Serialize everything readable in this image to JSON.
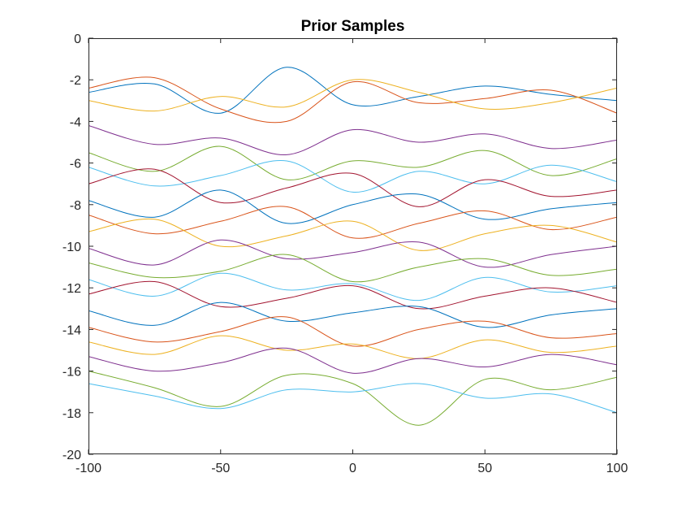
{
  "chart_data": {
    "type": "line",
    "title": "Prior Samples",
    "xlabel": "",
    "ylabel": "",
    "xlim": [
      -100,
      100
    ],
    "ylim": [
      -20,
      0
    ],
    "xticks": [
      -100,
      -50,
      0,
      50,
      100
    ],
    "yticks": [
      0,
      -2,
      -4,
      -6,
      -8,
      -10,
      -12,
      -14,
      -16,
      -18,
      -20
    ],
    "xtick_labels": [
      "-100",
      "-50",
      "0",
      "50",
      "100"
    ],
    "ytick_labels": [
      "0",
      "-2",
      "-4",
      "-6",
      "-8",
      "-10",
      "-12",
      "-14",
      "-16",
      "-18",
      "-20"
    ],
    "grid": false,
    "legend": "none",
    "colors": [
      "#0072BD",
      "#D95319",
      "#EDB120",
      "#7E2F8E",
      "#77AC30",
      "#4DBEEE",
      "#A2142F"
    ],
    "x": [
      -100,
      -75,
      -50,
      -25,
      0,
      25,
      50,
      75,
      100
    ],
    "series": [
      {
        "values": [
          -2.6,
          -2.2,
          -3.6,
          -1.4,
          -3.2,
          -2.8,
          -2.3,
          -2.7,
          -3.0
        ]
      },
      {
        "values": [
          -2.4,
          -1.9,
          -3.4,
          -4.0,
          -2.1,
          -3.1,
          -2.9,
          -2.5,
          -3.6
        ]
      },
      {
        "values": [
          -3.0,
          -3.5,
          -2.8,
          -3.3,
          -2.0,
          -2.6,
          -3.4,
          -3.1,
          -2.4
        ]
      },
      {
        "values": [
          -4.2,
          -5.1,
          -4.8,
          -5.6,
          -4.4,
          -5.0,
          -4.6,
          -5.3,
          -4.9
        ]
      },
      {
        "values": [
          -5.5,
          -6.4,
          -5.2,
          -6.8,
          -5.9,
          -6.2,
          -5.4,
          -6.6,
          -5.8
        ]
      },
      {
        "values": [
          -6.2,
          -7.1,
          -6.6,
          -5.9,
          -7.4,
          -6.4,
          -7.0,
          -6.1,
          -6.9
        ]
      },
      {
        "values": [
          -7.0,
          -6.3,
          -7.9,
          -7.2,
          -6.5,
          -8.1,
          -6.8,
          -7.6,
          -7.3
        ]
      },
      {
        "values": [
          -7.8,
          -8.6,
          -7.3,
          -8.9,
          -8.0,
          -7.5,
          -8.7,
          -8.2,
          -7.9
        ]
      },
      {
        "values": [
          -8.5,
          -9.4,
          -8.8,
          -8.1,
          -9.6,
          -8.9,
          -8.3,
          -9.2,
          -8.6
        ]
      },
      {
        "values": [
          -9.3,
          -8.7,
          -10.0,
          -9.5,
          -8.8,
          -10.2,
          -9.4,
          -9.0,
          -9.8
        ]
      },
      {
        "values": [
          -10.1,
          -10.9,
          -9.7,
          -10.6,
          -10.3,
          -9.8,
          -11.0,
          -10.4,
          -10.0
        ]
      },
      {
        "values": [
          -10.8,
          -11.5,
          -11.2,
          -10.4,
          -11.7,
          -11.0,
          -10.6,
          -11.4,
          -11.1
        ]
      },
      {
        "values": [
          -11.6,
          -12.4,
          -11.3,
          -12.1,
          -11.8,
          -12.6,
          -11.5,
          -12.2,
          -11.9
        ]
      },
      {
        "values": [
          -12.3,
          -11.7,
          -12.9,
          -12.5,
          -11.9,
          -13.0,
          -12.4,
          -12.0,
          -12.7
        ]
      },
      {
        "values": [
          -13.1,
          -13.8,
          -12.7,
          -13.6,
          -13.2,
          -12.9,
          -13.9,
          -13.3,
          -13.0
        ]
      },
      {
        "values": [
          -13.9,
          -14.6,
          -14.1,
          -13.4,
          -14.8,
          -14.0,
          -13.6,
          -14.4,
          -14.2
        ]
      },
      {
        "values": [
          -14.6,
          -15.2,
          -14.3,
          -15.0,
          -14.7,
          -15.4,
          -14.5,
          -15.1,
          -14.8
        ]
      },
      {
        "values": [
          -15.3,
          -16.0,
          -15.6,
          -14.9,
          -16.1,
          -15.4,
          -15.8,
          -15.2,
          -15.7
        ]
      },
      {
        "values": [
          -16.0,
          -16.8,
          -17.7,
          -16.2,
          -16.6,
          -18.6,
          -16.4,
          -16.9,
          -16.3
        ]
      },
      {
        "values": [
          -16.6,
          -17.2,
          -17.8,
          -16.9,
          -17.0,
          -16.6,
          -17.3,
          -17.1,
          -18.0
        ]
      }
    ]
  }
}
